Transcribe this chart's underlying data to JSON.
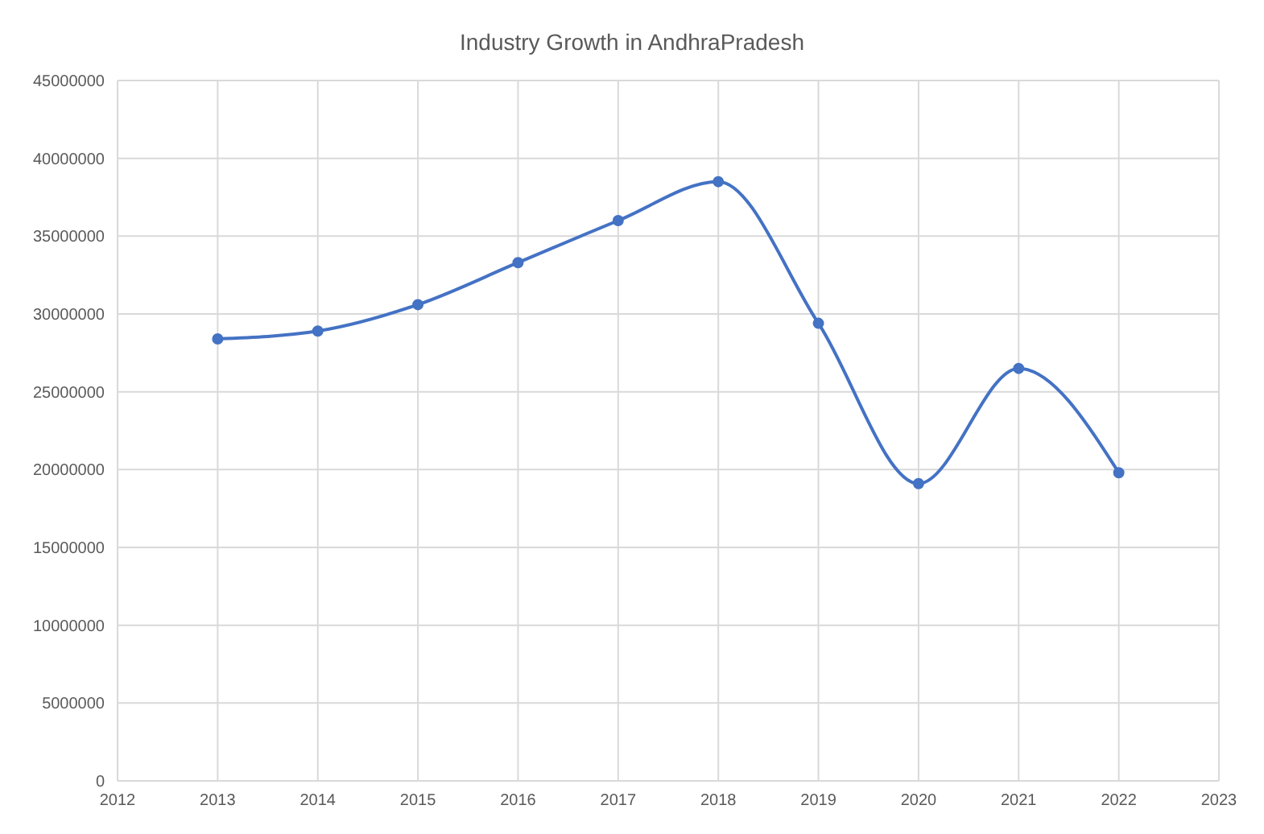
{
  "chart_data": {
    "type": "line",
    "title": "Industry Growth in AndhraPradesh",
    "x": [
      2013,
      2014,
      2015,
      2016,
      2017,
      2018,
      2019,
      2020,
      2021,
      2022
    ],
    "series": [
      {
        "color": "#4472c4",
        "values": [
          28400000,
          28900000,
          30600000,
          33300000,
          36000000,
          38500000,
          29400000,
          19100000,
          26500000,
          19800000
        ]
      }
    ],
    "xlim": [
      2012,
      2023
    ],
    "xticks": [
      2012,
      2013,
      2014,
      2015,
      2016,
      2017,
      2018,
      2019,
      2020,
      2021,
      2022,
      2023
    ],
    "ylim": [
      0,
      45000000
    ],
    "yticks": [
      0,
      5000000,
      10000000,
      15000000,
      20000000,
      25000000,
      30000000,
      35000000,
      40000000,
      45000000
    ],
    "grid": true,
    "marker": "circle",
    "line_style": "solid",
    "legend": false
  }
}
